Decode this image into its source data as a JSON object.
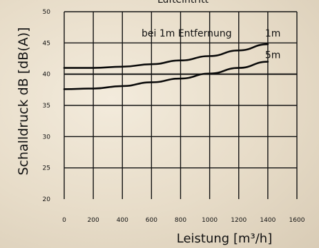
{
  "chart_data": {
    "type": "line",
    "title": "Lufteintritt",
    "xlabel": "Leistung [m³/h]",
    "ylabel": "Schalldruck dB  [dB(A)]",
    "xlim": [
      0,
      1600
    ],
    "ylim": [
      20,
      50
    ],
    "xticks": [
      0,
      200,
      400,
      600,
      800,
      1000,
      1200,
      1400,
      1600
    ],
    "yticks": [
      20,
      25,
      30,
      35,
      40,
      45,
      50
    ],
    "grid": true,
    "annotation": "bei 1m Entfernung",
    "series": [
      {
        "name": "1m",
        "x": [
          0,
          200,
          400,
          600,
          800,
          1000,
          1200,
          1400
        ],
        "y": [
          41.0,
          41.0,
          41.2,
          41.6,
          42.2,
          42.9,
          43.8,
          44.8
        ]
      },
      {
        "name": "5m",
        "x": [
          0,
          200,
          400,
          600,
          800,
          1000,
          1200,
          1400
        ],
        "y": [
          37.6,
          37.7,
          38.1,
          38.7,
          39.3,
          40.1,
          41.0,
          42.0
        ]
      }
    ]
  }
}
